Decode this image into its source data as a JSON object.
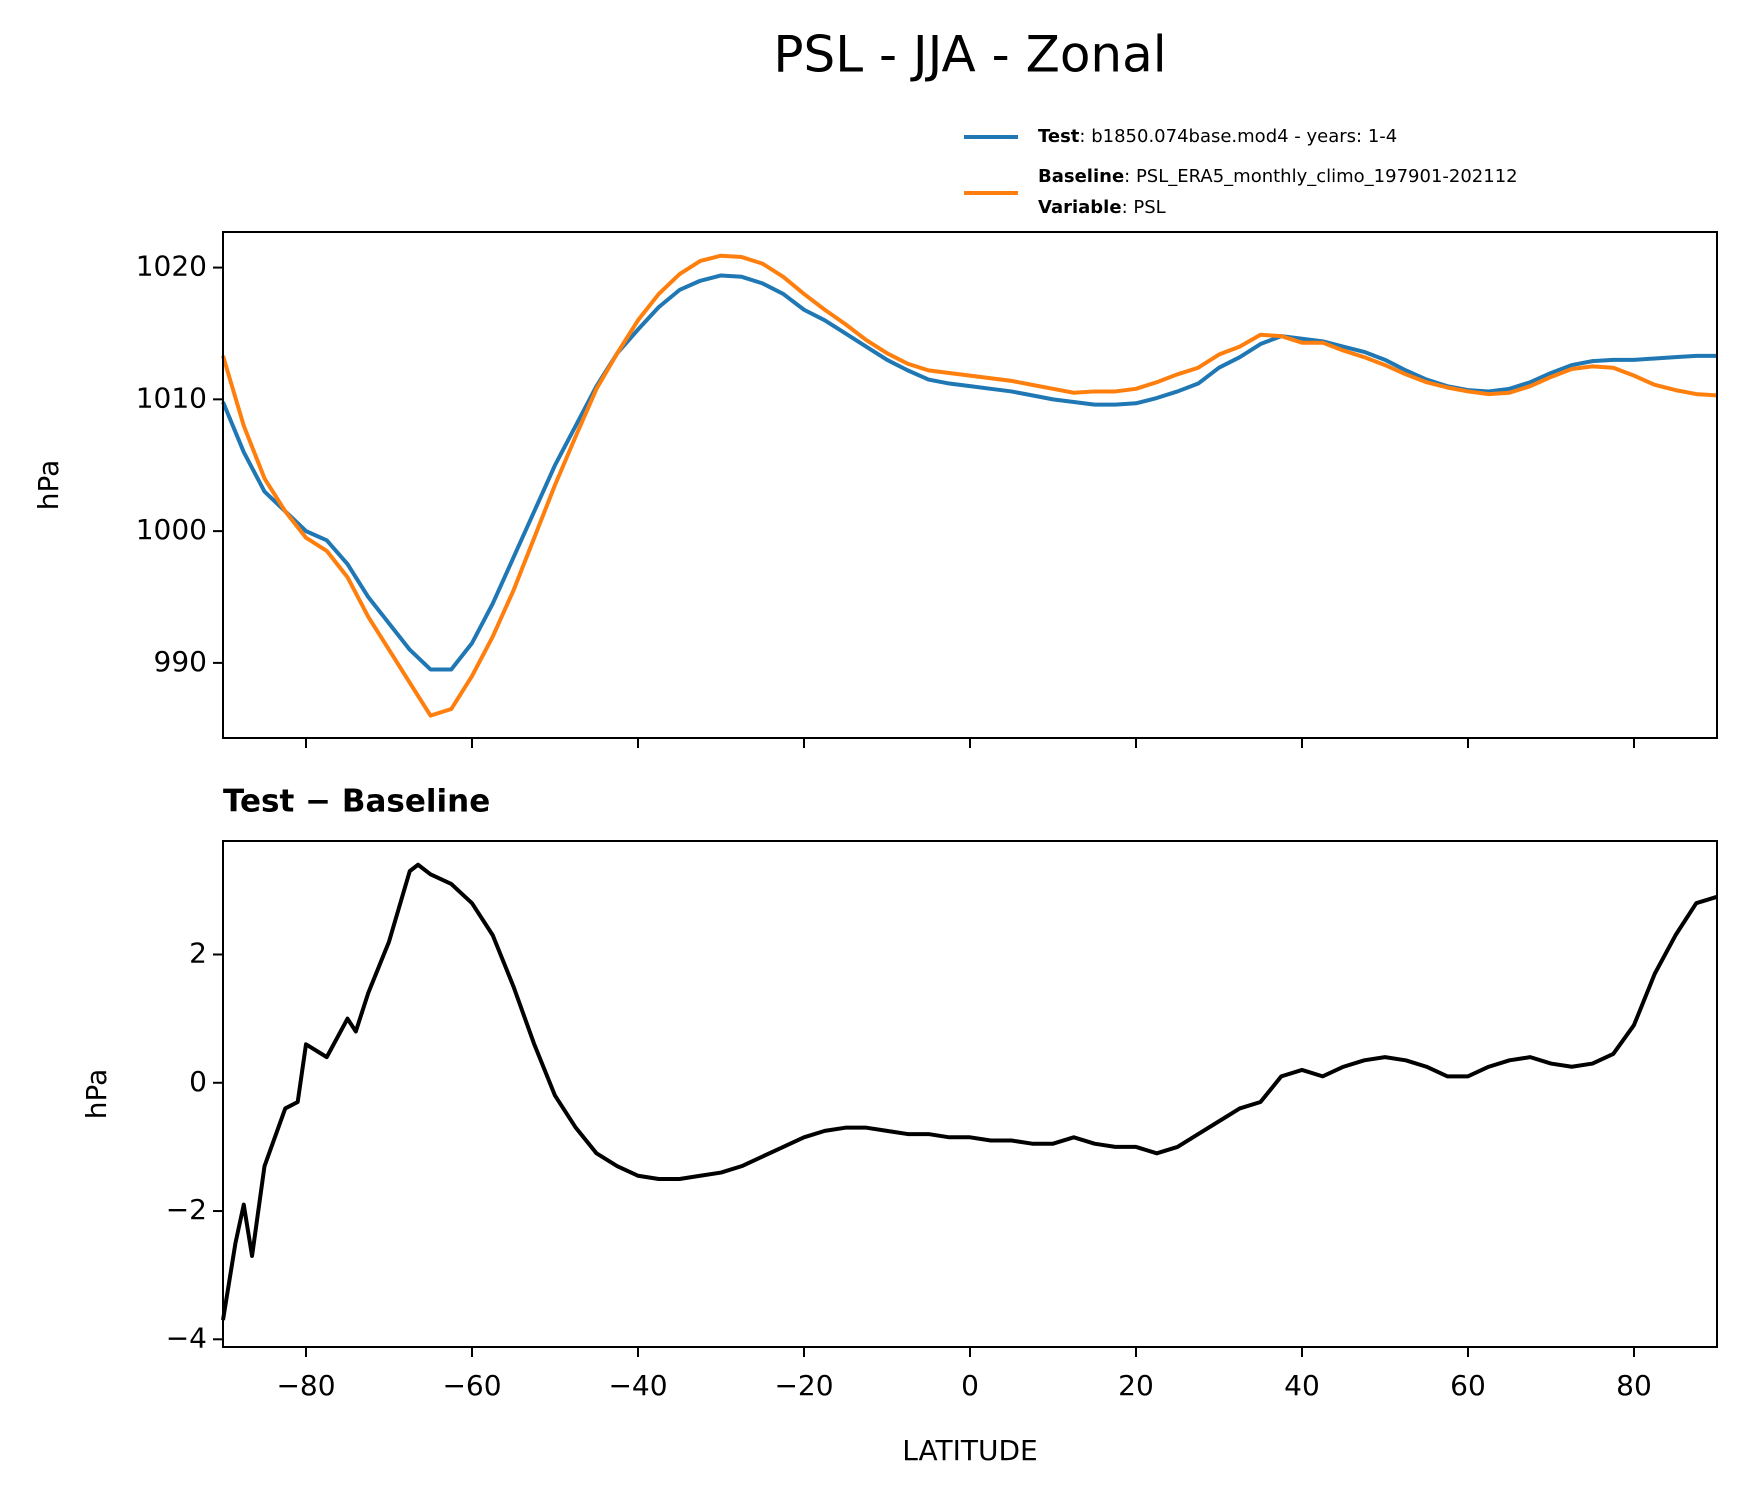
{
  "title": "PSL - JJA - Zonal",
  "legend_extra": {
    "name": "Variable",
    "description": ": PSL"
  },
  "chart_data": [
    {
      "type": "line",
      "ylabel": "hPa",
      "xlim": [
        -90,
        90
      ],
      "ylim": [
        984.3,
        1022.7
      ],
      "yticks": [
        990,
        1000,
        1010,
        1020
      ],
      "xticks": [
        -80,
        -60,
        -40,
        -20,
        0,
        20,
        40,
        60,
        80
      ],
      "xtick_labels_visible": false,
      "x": [
        -90,
        -87.5,
        -85,
        -82.5,
        -80,
        -77.5,
        -75,
        -72.5,
        -70,
        -67.5,
        -65,
        -62.5,
        -60,
        -57.5,
        -55,
        -52.5,
        -50,
        -47.5,
        -45,
        -42.5,
        -40,
        -37.5,
        -35,
        -32.5,
        -30,
        -27.5,
        -25,
        -22.5,
        -20,
        -17.5,
        -15,
        -12.5,
        -10,
        -7.5,
        -5,
        -2.5,
        0,
        2.5,
        5,
        7.5,
        10,
        12.5,
        15,
        17.5,
        20,
        22.5,
        25,
        27.5,
        30,
        32.5,
        35,
        37.5,
        40,
        42.5,
        45,
        47.5,
        50,
        52.5,
        55,
        57.5,
        60,
        62.5,
        65,
        67.5,
        70,
        72.5,
        75,
        77.5,
        80,
        82.5,
        85,
        87.5,
        90
      ],
      "series": [
        {
          "name": "Test",
          "description": ": b1850.074base.mod4 - years: 1-4",
          "color": "#1f77b4",
          "values": [
            1009.8,
            1006,
            1003,
            1001.5,
            1000,
            999.3,
            997.5,
            995,
            993,
            991,
            989.5,
            989.5,
            991.5,
            994.5,
            998,
            1001.5,
            1005,
            1008,
            1011,
            1013.5,
            1015.3,
            1017,
            1018.3,
            1019,
            1019.4,
            1019.3,
            1018.8,
            1018,
            1016.8,
            1016,
            1015,
            1014,
            1013,
            1012.2,
            1011.5,
            1011.2,
            1011,
            1010.8,
            1010.6,
            1010.3,
            1010,
            1009.8,
            1009.6,
            1009.6,
            1009.7,
            1010.1,
            1010.6,
            1011.2,
            1012.4,
            1013.2,
            1014.2,
            1014.8,
            1014.6,
            1014.4,
            1014,
            1013.6,
            1013,
            1012.2,
            1011.5,
            1011,
            1010.7,
            1010.6,
            1010.8,
            1011.3,
            1012,
            1012.6,
            1012.9,
            1013,
            1013,
            1013.1,
            1013.2,
            1013.3,
            1013.3
          ]
        },
        {
          "name": "Baseline",
          "description": ": PSL_ERA5_monthly_climo_197901-202112",
          "color": "#ff7f0e",
          "values": [
            1013.3,
            1008,
            1004,
            1001.5,
            999.5,
            998.5,
            996.5,
            993.5,
            991,
            988.5,
            986,
            986.5,
            989,
            992,
            995.5,
            999.5,
            1003.5,
            1007.2,
            1010.8,
            1013.5,
            1016,
            1018,
            1019.5,
            1020.5,
            1020.9,
            1020.8,
            1020.3,
            1019.3,
            1018,
            1016.8,
            1015.7,
            1014.5,
            1013.5,
            1012.7,
            1012.2,
            1012,
            1011.8,
            1011.6,
            1011.4,
            1011.1,
            1010.8,
            1010.5,
            1010.6,
            1010.6,
            1010.8,
            1011.3,
            1011.9,
            1012.4,
            1013.4,
            1014,
            1014.9,
            1014.8,
            1014.3,
            1014.3,
            1013.7,
            1013.2,
            1012.6,
            1011.9,
            1011.3,
            1010.9,
            1010.6,
            1010.4,
            1010.5,
            1011,
            1011.7,
            1012.3,
            1012.5,
            1012.4,
            1011.8,
            1011.1,
            1010.7,
            1010.4,
            1010.3
          ]
        }
      ]
    },
    {
      "type": "line",
      "title": "Test − Baseline",
      "ylabel": "hPa",
      "xlabel": "LATITUDE",
      "xlim": [
        -90,
        90
      ],
      "ylim": [
        -4.12,
        3.77
      ],
      "yticks": [
        {
          "value": -4,
          "label": "−4"
        },
        {
          "value": -2,
          "label": "−2"
        },
        0,
        2
      ],
      "xticks": [
        {
          "value": -80,
          "label": "−80"
        },
        {
          "value": -60,
          "label": "−60"
        },
        {
          "value": -40,
          "label": "−40"
        },
        {
          "value": -20,
          "label": "−20"
        },
        0,
        20,
        40,
        60,
        80
      ],
      "xtick_labels_visible": true,
      "x": [
        -90,
        -88.5,
        -87.5,
        -86.5,
        -85,
        -82.5,
        -81,
        -80,
        -77.5,
        -75,
        -74,
        -72.5,
        -70,
        -67.5,
        -66.5,
        -65,
        -62.5,
        -60,
        -57.5,
        -55,
        -52.5,
        -50,
        -47.5,
        -45,
        -42.5,
        -40,
        -37.5,
        -35,
        -32.5,
        -30,
        -27.5,
        -25,
        -22.5,
        -20,
        -17.5,
        -15,
        -12.5,
        -10,
        -7.5,
        -5,
        -2.5,
        0,
        2.5,
        5,
        7.5,
        10,
        12.5,
        15,
        17.5,
        20,
        22.5,
        25,
        27.5,
        30,
        32.5,
        35,
        37.5,
        40,
        42.5,
        45,
        47.5,
        50,
        52.5,
        55,
        57.5,
        60,
        62.5,
        65,
        67.5,
        70,
        72.5,
        75,
        77.5,
        80,
        82.5,
        85,
        87.5,
        90
      ],
      "series": [
        {
          "name": "Test − Baseline",
          "color": "#000000",
          "values": [
            -3.7,
            -2.5,
            -1.9,
            -2.7,
            -1.3,
            -0.4,
            -0.3,
            0.6,
            0.4,
            1.0,
            0.8,
            1.4,
            2.2,
            3.3,
            3.4,
            3.25,
            3.1,
            2.8,
            2.3,
            1.5,
            0.6,
            -0.2,
            -0.7,
            -1.1,
            -1.3,
            -1.45,
            -1.5,
            -1.5,
            -1.45,
            -1.4,
            -1.3,
            -1.15,
            -1.0,
            -0.85,
            -0.75,
            -0.7,
            -0.7,
            -0.75,
            -0.8,
            -0.8,
            -0.85,
            -0.85,
            -0.9,
            -0.9,
            -0.95,
            -0.95,
            -0.85,
            -0.95,
            -1.0,
            -1.0,
            -1.1,
            -1.0,
            -0.8,
            -0.6,
            -0.4,
            -0.3,
            0.1,
            0.2,
            0.1,
            0.25,
            0.35,
            0.4,
            0.35,
            0.25,
            0.1,
            0.1,
            0.25,
            0.35,
            0.4,
            0.3,
            0.25,
            0.3,
            0.45,
            0.9,
            1.7,
            2.3,
            2.8,
            2.9
          ]
        }
      ]
    }
  ]
}
